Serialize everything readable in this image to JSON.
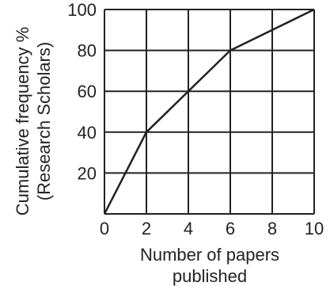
{
  "chart_data": {
    "type": "line",
    "xlabel_lines": [
      "Number of papers",
      "published"
    ],
    "ylabel_lines": [
      "Cumulative frequency %",
      "(Research Scholars)"
    ],
    "x": [
      0,
      2,
      4,
      6,
      10
    ],
    "y": [
      0,
      40,
      60,
      80,
      100
    ],
    "xlim": [
      0,
      10
    ],
    "ylim": [
      0,
      100
    ],
    "x_ticks": [
      0,
      2,
      4,
      6,
      8,
      10
    ],
    "x_tick_labels": [
      "0",
      "2",
      "4",
      "6",
      "8",
      "10"
    ],
    "y_ticks": [
      20,
      40,
      60,
      80,
      100
    ],
    "y_tick_labels": [
      "20",
      "40",
      "60",
      "80",
      "100"
    ],
    "grid": true,
    "line_color": "#222222",
    "grid_color": "#222222"
  }
}
